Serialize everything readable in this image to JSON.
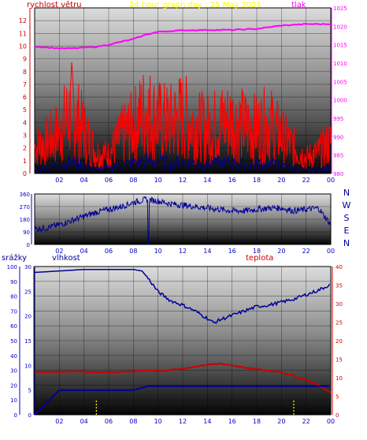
{
  "header": {
    "title": "24 hour graph day : 25 May 2021",
    "wind_label": "rychlost větru",
    "pressure_label": "tlak",
    "rain_label": "srážky",
    "humidity_label": "vlhkost",
    "temp_label": "teplota"
  },
  "colors": {
    "wind": "#ff0000",
    "pressure": "#ff00ff",
    "direction": "#000099",
    "humidity": "#000099",
    "temperature": "#cc0000",
    "rain": "#000099",
    "rain_marks": "#ffff00",
    "title": "#ffff00",
    "axis_blue": "#0000cc",
    "axis_red": "#cc0000",
    "axis_magenta": "#ff00ff"
  },
  "x_axis": {
    "ticks": [
      "02",
      "04",
      "06",
      "08",
      "10",
      "12",
      "14",
      "16",
      "18",
      "20",
      "22",
      "00"
    ]
  },
  "chart_data": [
    {
      "type": "line",
      "name": "wind-pressure",
      "left_axis": {
        "label": "rychlost větru",
        "ticks": [
          "0",
          "1",
          "2",
          "3",
          "4",
          "5",
          "6",
          "7",
          "8",
          "9",
          "10",
          "11",
          "12"
        ],
        "ylim": [
          0,
          13
        ]
      },
      "right_axis": {
        "label": "tlak",
        "ticks": [
          "980",
          "985",
          "990",
          "995",
          "1000",
          "1005",
          "1010",
          "1015",
          "1020",
          "1025"
        ],
        "ylim": [
          980,
          1025
        ]
      },
      "series": [
        {
          "name": "tlak",
          "hours": [
            0,
            2,
            3,
            5,
            6,
            7,
            8,
            9,
            10,
            12,
            14,
            16,
            18,
            20,
            22,
            24
          ],
          "values": [
            1014.5,
            1014.0,
            1014.0,
            1014.4,
            1015.0,
            1015.8,
            1016.5,
            1017.7,
            1018.5,
            1018.9,
            1019.0,
            1019.0,
            1019.3,
            1020.2,
            1020.6,
            1020.6
          ]
        },
        {
          "name": "wind-gust",
          "hours": [
            0,
            1,
            2,
            3,
            4,
            5,
            6,
            7,
            8,
            9,
            10,
            11,
            12,
            13,
            14,
            15,
            16,
            17,
            18,
            19,
            20,
            21,
            22,
            23,
            24
          ],
          "values": [
            2.5,
            3,
            4,
            6,
            4,
            2,
            1.8,
            3.5,
            4.5,
            6,
            5,
            4.8,
            5.5,
            4.5,
            4.2,
            4.8,
            5,
            4.5,
            4.2,
            4.8,
            3.5,
            2.5,
            1.5,
            2,
            3
          ]
        },
        {
          "name": "wind-average",
          "hours": [
            0,
            1,
            2,
            3,
            4,
            5,
            6,
            7,
            8,
            9,
            10,
            11,
            12,
            13,
            14,
            15,
            16,
            17,
            18,
            19,
            20,
            21,
            22,
            23,
            24
          ],
          "values": [
            0.3,
            0.5,
            0.7,
            0.9,
            0.6,
            0.3,
            0.4,
            0.7,
            0.8,
            1.0,
            0.9,
            0.8,
            0.9,
            0.8,
            0.7,
            0.8,
            0.8,
            0.7,
            0.7,
            0.8,
            0.6,
            0.4,
            0.2,
            0.3,
            0.4
          ]
        }
      ]
    },
    {
      "type": "line",
      "name": "wind-direction",
      "left_axis": {
        "ticks": [
          "0",
          "90",
          "180",
          "270",
          "360"
        ],
        "ylim": [
          0,
          360
        ]
      },
      "right_axis_labels": [
        "N",
        "W",
        "S",
        "E",
        "N"
      ],
      "series": [
        {
          "name": "direction",
          "hours": [
            0,
            1,
            2,
            3,
            4,
            5,
            6,
            7,
            8,
            9,
            10,
            11,
            12,
            13,
            14,
            15,
            16,
            17,
            18,
            19,
            20,
            21,
            22,
            23,
            24
          ],
          "values": [
            110,
            120,
            140,
            170,
            200,
            230,
            250,
            270,
            300,
            320,
            310,
            290,
            280,
            270,
            260,
            250,
            240,
            240,
            250,
            260,
            260,
            240,
            250,
            260,
            140
          ]
        }
      ]
    },
    {
      "type": "line",
      "name": "rain-humidity-temperature",
      "left_axis_rain": {
        "label": "srážky",
        "ticks": [
          "0",
          "10",
          "20",
          "30",
          "40",
          "50",
          "60",
          "70",
          "80",
          "90",
          "100"
        ],
        "ylim": [
          0,
          100
        ]
      },
      "left_axis_humidity": {
        "label": "vlhkost",
        "ticks": [
          "0",
          "5",
          "10",
          "15",
          "20",
          "25",
          "30"
        ],
        "ylim": [
          0,
          30
        ]
      },
      "right_axis": {
        "label": "teplota",
        "ticks": [
          "0",
          "5",
          "10",
          "15",
          "20",
          "25",
          "30",
          "35",
          "40"
        ],
        "ylim": [
          0,
          40
        ]
      },
      "series": [
        {
          "name": "vlhkost",
          "hours": [
            0,
            2,
            4,
            6,
            8,
            8.7,
            9.2,
            10,
            11,
            12,
            13,
            14,
            14.5,
            15,
            16,
            17,
            18,
            19,
            20,
            21,
            22,
            23,
            24
          ],
          "values": [
            96,
            97,
            98,
            98,
            98,
            97,
            92,
            83,
            77,
            74,
            70,
            65,
            62,
            64,
            67,
            70,
            73,
            74,
            76,
            78,
            81,
            84,
            88
          ]
        },
        {
          "name": "teplota",
          "hours": [
            0,
            2,
            4,
            6,
            8,
            9,
            10,
            12,
            14,
            15,
            16,
            18,
            20,
            22,
            23,
            24
          ],
          "values": [
            11.5,
            11.6,
            11.6,
            11.5,
            11.7,
            12,
            11.7,
            12.5,
            13.5,
            13.8,
            13.2,
            12.3,
            11.5,
            9.5,
            8,
            6
          ]
        },
        {
          "name": "srážky",
          "hours": [
            0,
            1,
            2,
            3,
            8,
            9.2,
            24
          ],
          "values": [
            0,
            2.5,
            5,
            5,
            5,
            5.8,
            5.8
          ]
        }
      ],
      "rain_markers_hours": [
        5,
        21
      ]
    }
  ]
}
